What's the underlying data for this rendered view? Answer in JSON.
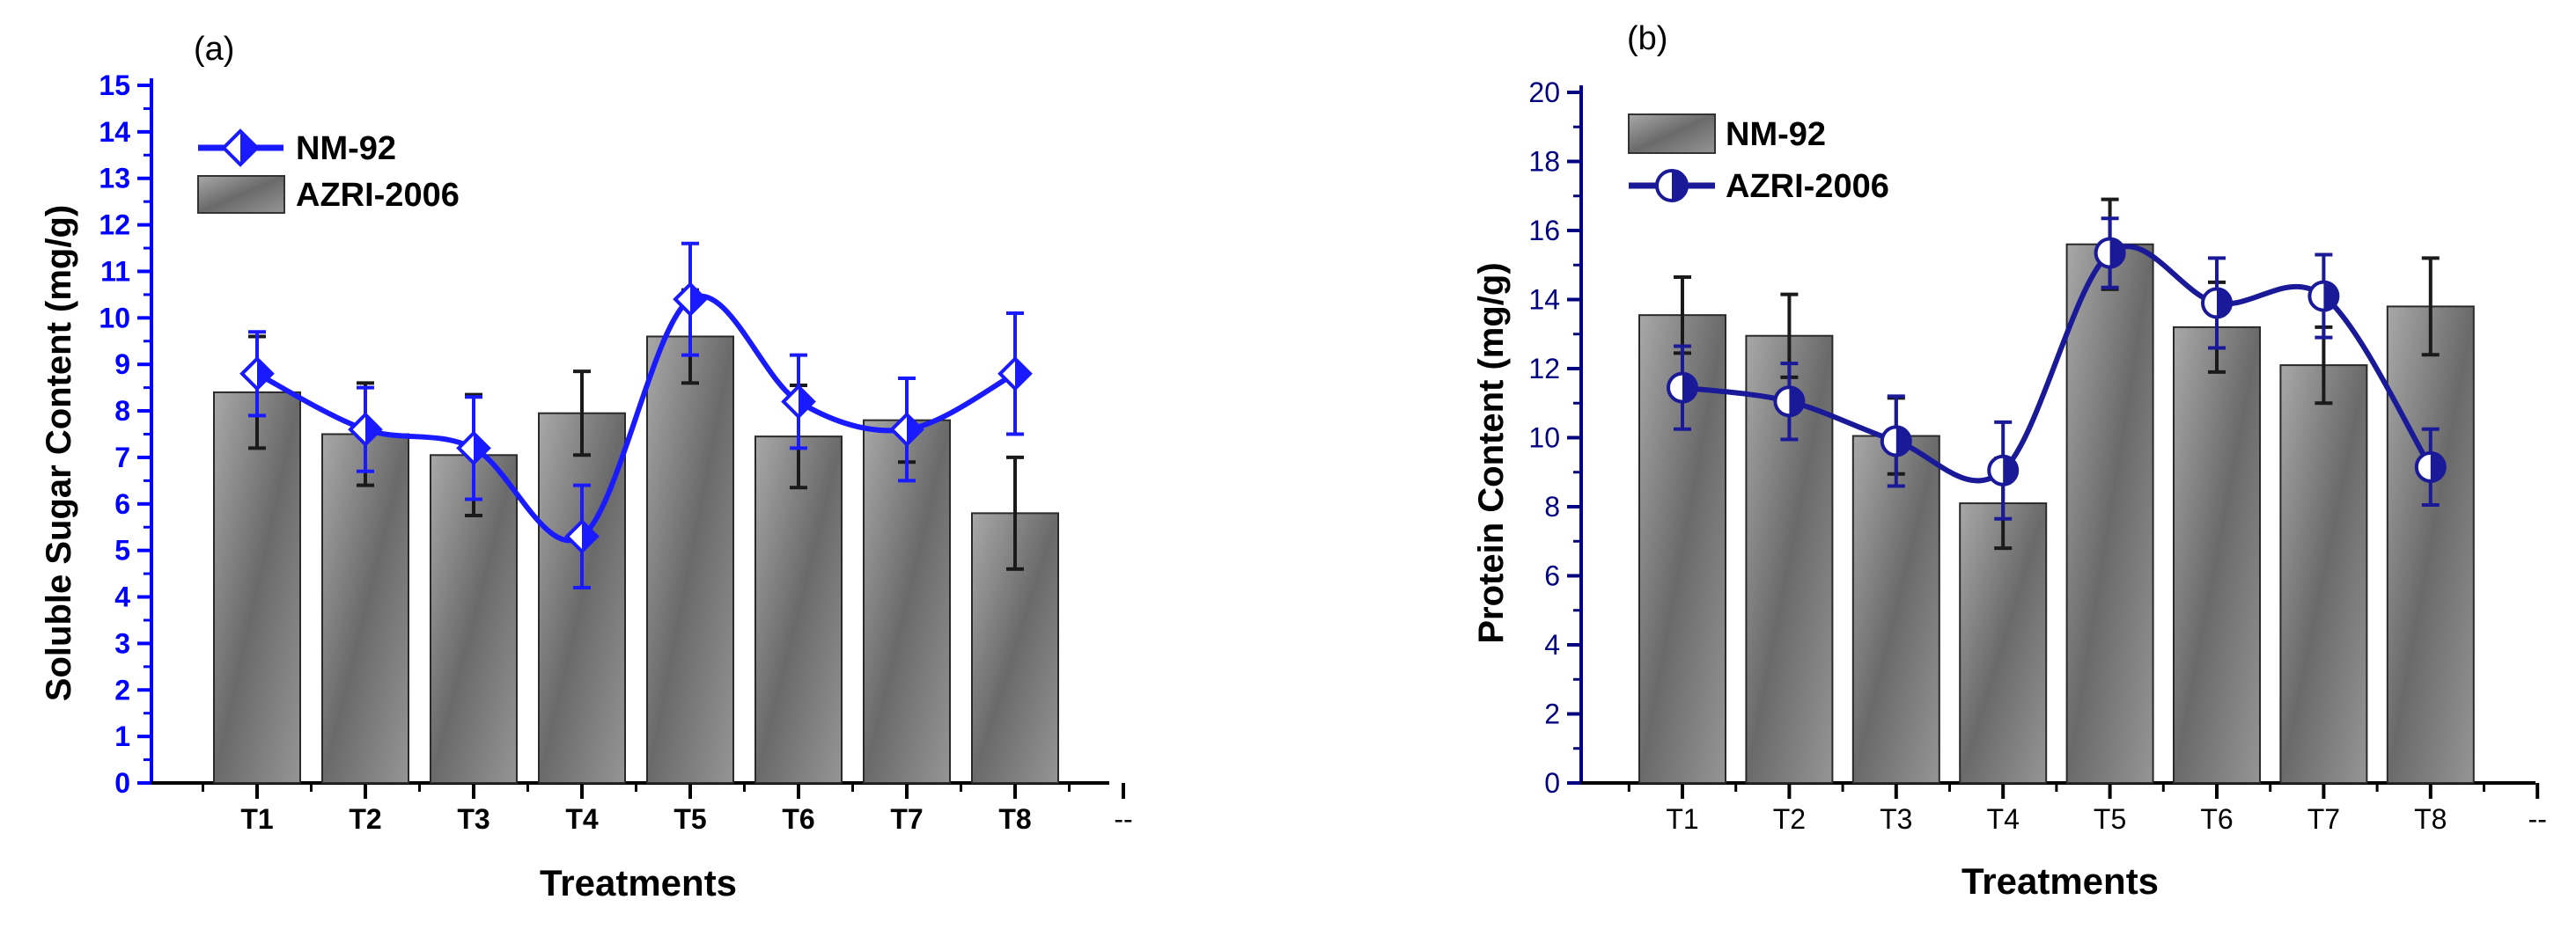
{
  "chart_data": [
    {
      "panel_label": "(a)",
      "type": "bar+line",
      "title": "",
      "xlabel": "Treatments",
      "ylabel": "Soluble Sugar Content (mg/g)",
      "categories": [
        "T1",
        "T2",
        "T3",
        "T4",
        "T5",
        "T6",
        "T7",
        "T8"
      ],
      "extra_x_tick": "--",
      "ylim": [
        0,
        15
      ],
      "yticks": [
        0,
        1,
        2,
        3,
        4,
        5,
        6,
        7,
        8,
        9,
        10,
        11,
        12,
        13,
        14,
        15
      ],
      "y_axis_color": "#0000ff",
      "legend_position": "top-left",
      "series": [
        {
          "name": "NM-92",
          "kind": "line",
          "marker": "half-filled-diamond",
          "color": "#1a1aff",
          "values": [
            8.8,
            7.6,
            7.2,
            5.3,
            10.4,
            8.2,
            7.6,
            8.8
          ],
          "errors": [
            0.9,
            0.9,
            1.1,
            1.1,
            1.2,
            1.0,
            1.1,
            1.3
          ]
        },
        {
          "name": "AZRI-2006",
          "kind": "bar",
          "color": "#808080",
          "values": [
            8.4,
            7.5,
            7.05,
            7.95,
            9.6,
            7.45,
            7.8,
            5.8
          ],
          "errors": [
            1.2,
            1.1,
            1.3,
            0.9,
            1.0,
            1.1,
            0.9,
            1.2
          ]
        }
      ]
    },
    {
      "panel_label": "(b)",
      "type": "bar+line",
      "title": "",
      "xlabel": "Treatments",
      "ylabel": "Protein Content (mg/g)",
      "categories": [
        "T1",
        "T2",
        "T3",
        "T4",
        "T5",
        "T6",
        "T7",
        "T8"
      ],
      "extra_x_tick": "--",
      "ylim": [
        0,
        20
      ],
      "yticks": [
        0,
        2,
        4,
        6,
        8,
        10,
        12,
        14,
        16,
        18,
        20
      ],
      "y_axis_color": "#000080",
      "legend_position": "top-left",
      "series": [
        {
          "name": "NM-92",
          "kind": "bar",
          "color": "#808080",
          "values": [
            13.55,
            12.95,
            10.05,
            8.1,
            15.6,
            13.2,
            12.1,
            13.8
          ],
          "errors": [
            1.1,
            1.2,
            1.1,
            1.3,
            1.3,
            1.3,
            1.1,
            1.4
          ]
        },
        {
          "name": "AZRI-2006",
          "kind": "line",
          "marker": "half-filled-circle",
          "color": "#1a1a99",
          "values": [
            11.45,
            11.05,
            9.9,
            9.05,
            15.35,
            13.9,
            14.1,
            9.15
          ],
          "errors": [
            1.2,
            1.1,
            1.3,
            1.4,
            1.0,
            1.3,
            1.2,
            1.1
          ]
        }
      ]
    }
  ]
}
